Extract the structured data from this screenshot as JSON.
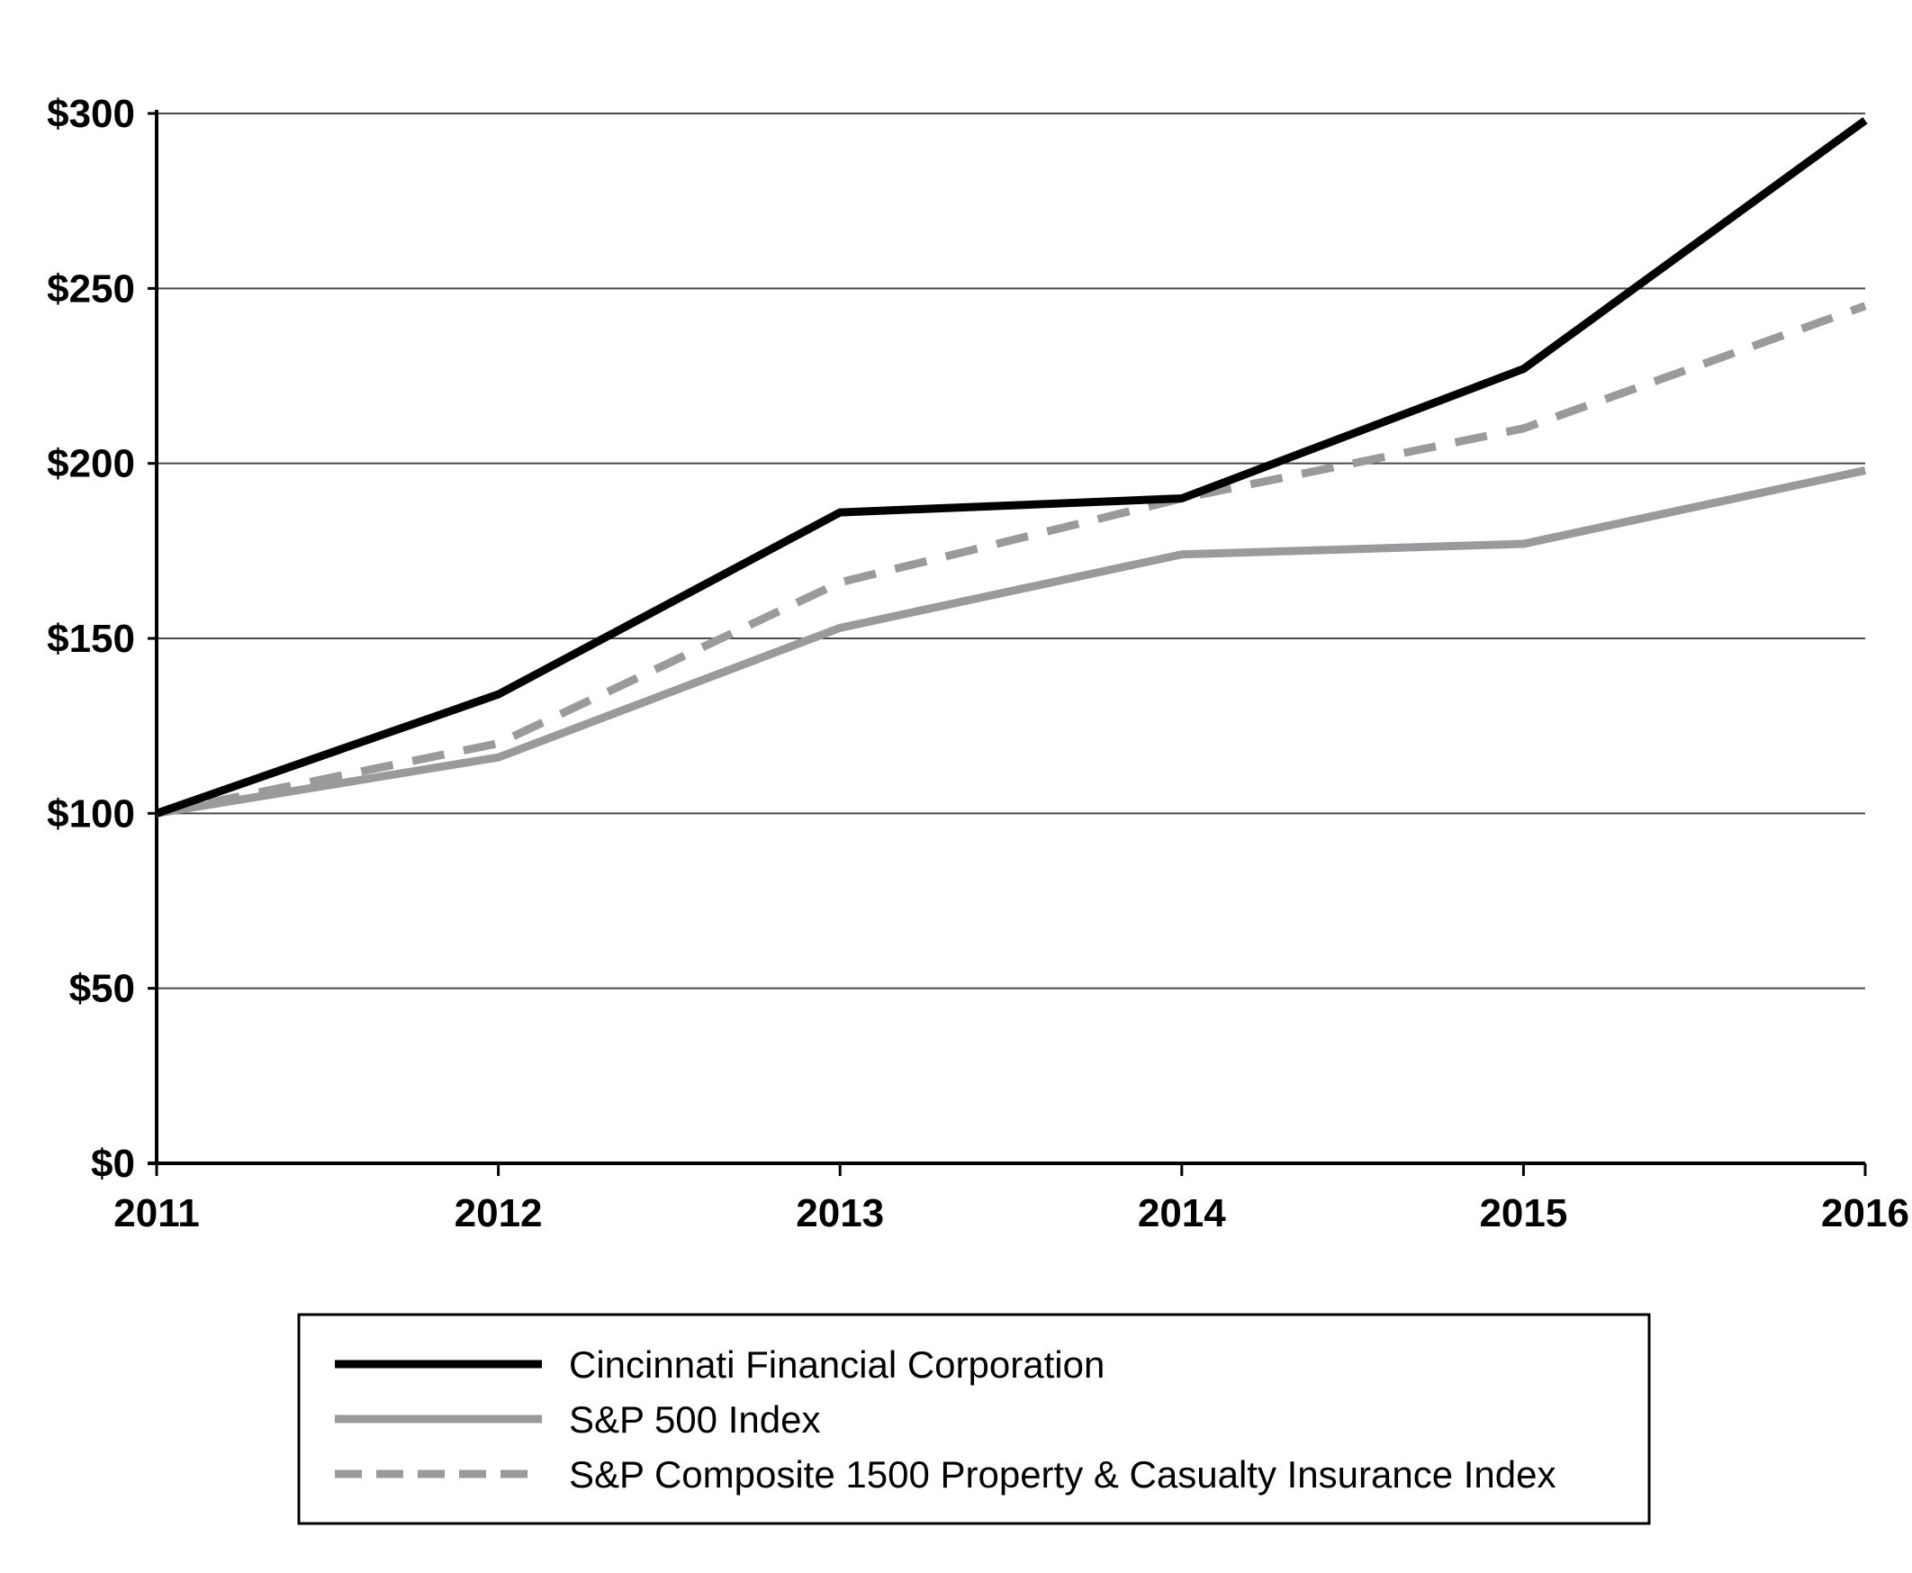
{
  "chart_data": {
    "type": "line",
    "title": "",
    "xlabel": "",
    "ylabel": "",
    "x": [
      "2011",
      "2012",
      "2013",
      "2014",
      "2015",
      "2016"
    ],
    "ylim": [
      0,
      300
    ],
    "y_ticks": [
      0,
      50,
      100,
      150,
      200,
      250,
      300
    ],
    "y_tick_labels": [
      "$0",
      "$50",
      "$100",
      "$150",
      "$200",
      "$250",
      "$300"
    ],
    "grid": true,
    "legend_position": "bottom-center",
    "series": [
      {
        "name": "Cincinnati Financial Corporation",
        "values": [
          100,
          134,
          186,
          190,
          227,
          298
        ],
        "color": "#000000",
        "style": "solid"
      },
      {
        "name": "S&P 500 Index",
        "values": [
          100,
          116,
          153,
          174,
          177,
          198
        ],
        "color": "#9a9a9c",
        "style": "solid"
      },
      {
        "name": "S&P Composite 1500 Property & Casualty Insurance Index",
        "values": [
          100,
          120,
          166,
          190,
          210,
          245
        ],
        "color": "#9a9a9c",
        "style": "dashed"
      }
    ]
  }
}
